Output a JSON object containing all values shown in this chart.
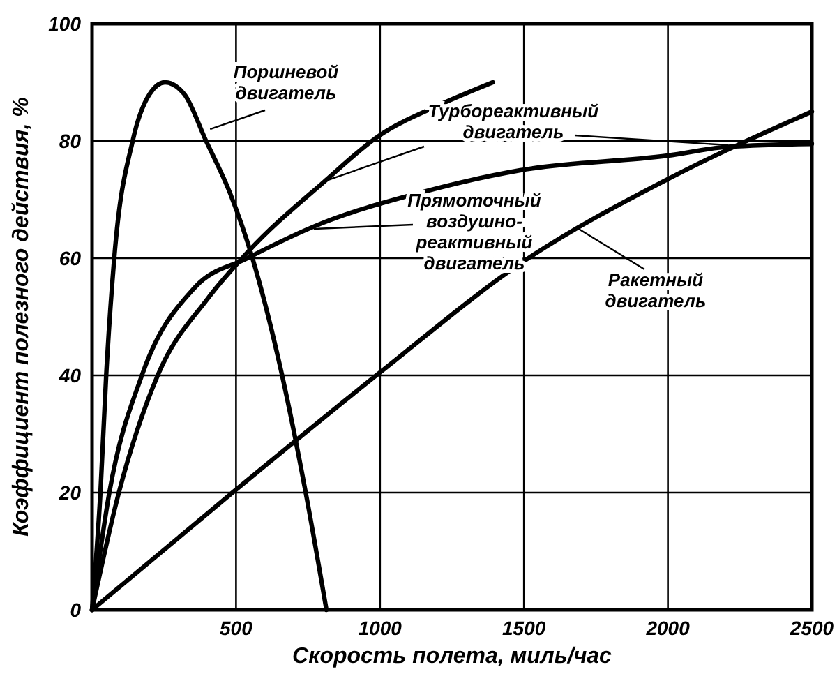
{
  "chart_data": {
    "type": "line",
    "xlabel": "Скорость полета, миль/час",
    "ylabel": "Коэффициент полезного действия, %",
    "xlim": [
      0,
      2500
    ],
    "ylim": [
      0,
      100
    ],
    "xticks": [
      500,
      1000,
      1500,
      2000,
      2500
    ],
    "yticks": [
      0,
      20,
      40,
      60,
      80,
      100
    ],
    "grid": true,
    "annotations": [
      {
        "text": "Поршневой двигатель",
        "x": 410,
        "y": 82
      },
      {
        "text": "Турбореактивный двигатель",
        "x": 800,
        "y": 73
      },
      {
        "text": "Прямоточный воздушно-реактивный двигатель",
        "x": 770,
        "y": 65
      },
      {
        "text": "Ракетный двигатель",
        "x": 1690,
        "y": 65
      }
    ],
    "line_style": "solid",
    "marker": "none",
    "series": [
      {
        "color": "#000000",
        "x": [
          0,
          29,
          49,
          77,
          141,
          200,
          253,
          320,
          396,
          480,
          557,
          660,
          742,
          814
        ],
        "values": [
          0,
          20,
          40,
          60,
          80,
          88,
          90,
          88,
          80,
          71,
          60,
          40,
          20,
          0
        ]
      },
      {
        "color": "#000000",
        "x": [
          0,
          93,
          228,
          400,
          540,
          805,
          1000,
          1200,
          1392
        ],
        "values": [
          0,
          20,
          40,
          53,
          61,
          73,
          81,
          86,
          90
        ]
      },
      {
        "color": "#000000",
        "x": [
          0,
          60,
          173,
          357,
          540,
          800,
          1127,
          1487,
          2000,
          2208,
          2500
        ],
        "values": [
          0,
          20,
          40,
          55,
          60,
          66,
          71,
          75,
          77.5,
          79,
          79.5
        ]
      },
      {
        "color": "#000000",
        "x": [
          0,
          500,
          1000,
          1500,
          2000,
          2500
        ],
        "values": [
          0,
          20.5,
          40.5,
          59.5,
          73.5,
          85
        ]
      }
    ]
  }
}
